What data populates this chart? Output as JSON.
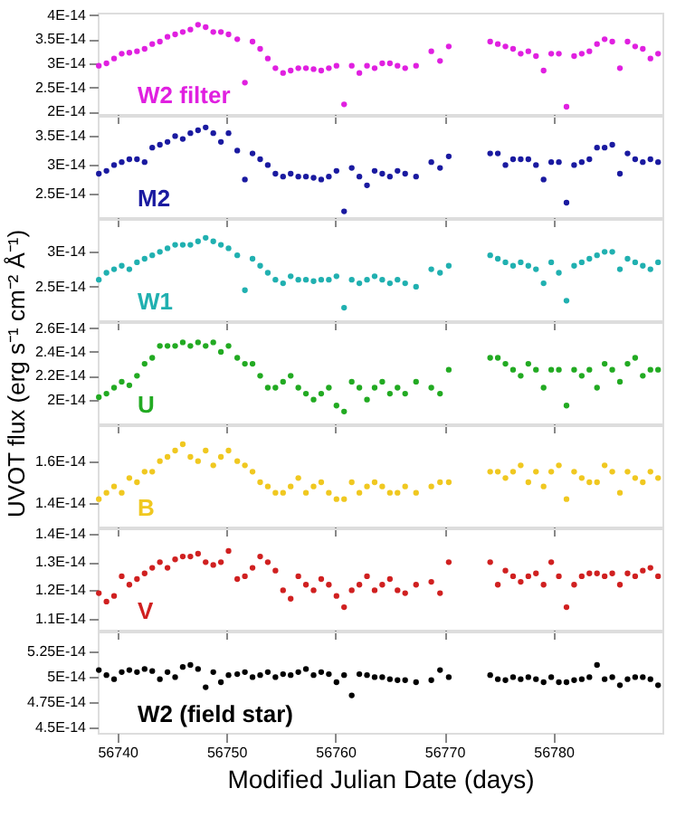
{
  "chart_data": [
    {
      "type": "scatter",
      "marker": "circle",
      "legend": false,
      "tick_labels": "y",
      "xlim": [
        56738.2,
        56790
      ],
      "xticks": [
        56740,
        56750,
        56760,
        56770,
        56780
      ],
      "ylim": [
        1.95e-14,
        4.05e-14
      ],
      "yticks": [
        {
          "value": 2e-14,
          "label": "2E-14"
        },
        {
          "value": 2.5e-14,
          "label": "2.5E-14"
        },
        {
          "value": 3e-14,
          "label": "3E-14"
        },
        {
          "value": 3.5e-14,
          "label": "3.5E-14"
        },
        {
          "value": 4e-14,
          "label": "4E-14"
        }
      ],
      "x": [
        56738.3,
        56739,
        56739.7,
        56740.4,
        56741.1,
        56741.8,
        56742.5,
        56743.2,
        56743.9,
        56744.6,
        56745.3,
        56746,
        56746.7,
        56747.4,
        56748.1,
        56748.8,
        56749.5,
        56750.2,
        56751,
        56751.7,
        56752.4,
        56753.1,
        56753.8,
        56754.5,
        56755.2,
        56755.9,
        56756.6,
        56757.3,
        56758,
        56758.7,
        56759.4,
        56760.1,
        56760.8,
        56761.5,
        56762.2,
        56762.9,
        56763.6,
        56764.3,
        56765,
        56765.7,
        56766.4,
        56767.4,
        56768.8,
        56769.6,
        56770.4,
        56774.2,
        56774.9,
        56775.6,
        56776.3,
        56777,
        56777.7,
        56778.4,
        56779.1,
        56779.8,
        56780.5,
        56781.2,
        56781.9,
        56782.6,
        56783.3,
        56784,
        56784.7,
        56785.4,
        56786.1,
        56786.8,
        56787.5,
        56788.2,
        56788.9,
        56789.6
      ],
      "series": [
        {
          "name": "W2 filter",
          "color": "#e020e0",
          "values": [
            2.95e-14,
            3e-14,
            3.1e-14,
            3.2e-14,
            3.22e-14,
            3.25e-14,
            3.3e-14,
            3.4e-14,
            3.45e-14,
            3.55e-14,
            3.6e-14,
            3.65e-14,
            3.7e-14,
            3.8e-14,
            3.75e-14,
            3.65e-14,
            3.65e-14,
            3.6e-14,
            3.5e-14,
            2.6e-14,
            3.45e-14,
            3.3e-14,
            3.1e-14,
            2.9e-14,
            2.8e-14,
            2.85e-14,
            2.9e-14,
            2.9e-14,
            2.88e-14,
            2.85e-14,
            2.9e-14,
            2.95e-14,
            2.15e-14,
            2.95e-14,
            2.8e-14,
            2.95e-14,
            2.9e-14,
            3e-14,
            3e-14,
            2.95e-14,
            2.9e-14,
            2.95e-14,
            3.25e-14,
            3.05e-14,
            3.35e-14,
            3.45e-14,
            3.4e-14,
            3.35e-14,
            3.3e-14,
            3.2e-14,
            3.25e-14,
            3.15e-14,
            2.85e-14,
            3.2e-14,
            3.2e-14,
            2.1e-14,
            3.15e-14,
            3.2e-14,
            3.25e-14,
            3.4e-14,
            3.5e-14,
            3.45e-14,
            2.9e-14,
            3.45e-14,
            3.35e-14,
            3.3e-14,
            3.1e-14,
            3.2e-14
          ]
        }
      ]
    },
    {
      "type": "scatter",
      "marker": "circle",
      "legend": false,
      "tick_labels": "y",
      "xlim": [
        56738.2,
        56790
      ],
      "xticks": [
        56740,
        56750,
        56760,
        56770,
        56780
      ],
      "ylim": [
        2.1e-14,
        3.85e-14
      ],
      "yticks": [
        {
          "value": 2.5e-14,
          "label": "2.5E-14"
        },
        {
          "value": 3e-14,
          "label": "3E-14"
        },
        {
          "value": 3.5e-14,
          "label": "3.5E-14"
        }
      ],
      "x": [
        56738.3,
        56739,
        56739.7,
        56740.4,
        56741.1,
        56741.8,
        56742.5,
        56743.2,
        56743.9,
        56744.6,
        56745.3,
        56746,
        56746.7,
        56747.4,
        56748.1,
        56748.8,
        56749.5,
        56750.2,
        56751,
        56751.7,
        56752.4,
        56753.1,
        56753.8,
        56754.5,
        56755.2,
        56755.9,
        56756.6,
        56757.3,
        56758,
        56758.7,
        56759.4,
        56760.1,
        56760.8,
        56761.5,
        56762.2,
        56762.9,
        56763.6,
        56764.3,
        56765,
        56765.7,
        56766.4,
        56767.4,
        56768.8,
        56769.6,
        56770.4,
        56774.2,
        56774.9,
        56775.6,
        56776.3,
        56777,
        56777.7,
        56778.4,
        56779.1,
        56779.8,
        56780.5,
        56781.2,
        56781.9,
        56782.6,
        56783.3,
        56784,
        56784.7,
        56785.4,
        56786.1,
        56786.8,
        56787.5,
        56788.2,
        56788.9,
        56789.6
      ],
      "series": [
        {
          "name": "M2",
          "color": "#1a1aa0",
          "values": [
            2.85e-14,
            2.9e-14,
            3e-14,
            3.05e-14,
            3.1e-14,
            3.1e-14,
            3.05e-14,
            3.3e-14,
            3.35e-14,
            3.4e-14,
            3.5e-14,
            3.45e-14,
            3.55e-14,
            3.6e-14,
            3.65e-14,
            3.55e-14,
            3.4e-14,
            3.55e-14,
            3.25e-14,
            2.75e-14,
            3.2e-14,
            3.1e-14,
            3e-14,
            2.85e-14,
            2.8e-14,
            2.85e-14,
            2.8e-14,
            2.8e-14,
            2.78e-14,
            2.75e-14,
            2.8e-14,
            2.9e-14,
            2.2e-14,
            2.95e-14,
            2.8e-14,
            2.65e-14,
            2.9e-14,
            2.85e-14,
            2.8e-14,
            2.9e-14,
            2.85e-14,
            2.8e-14,
            3.05e-14,
            2.95e-14,
            3.15e-14,
            3.2e-14,
            3.2e-14,
            3e-14,
            3.1e-14,
            3.1e-14,
            3.1e-14,
            3e-14,
            2.75e-14,
            3.05e-14,
            3.05e-14,
            2.35e-14,
            3e-14,
            3.05e-14,
            3.1e-14,
            3.3e-14,
            3.3e-14,
            3.35e-14,
            2.85e-14,
            3.2e-14,
            3.1e-14,
            3.05e-14,
            3.1e-14,
            3.05e-14
          ]
        }
      ]
    },
    {
      "type": "scatter",
      "marker": "circle",
      "legend": false,
      "tick_labels": "y",
      "xlim": [
        56738.2,
        56790
      ],
      "xticks": [
        56740,
        56750,
        56760,
        56770,
        56780
      ],
      "ylim": [
        2.02e-14,
        3.47e-14
      ],
      "yticks": [
        {
          "value": 2.5e-14,
          "label": "2.5E-14"
        },
        {
          "value": 3e-14,
          "label": "3E-14"
        }
      ],
      "x": [
        56738.3,
        56739,
        56739.7,
        56740.4,
        56741.1,
        56741.8,
        56742.5,
        56743.2,
        56743.9,
        56744.6,
        56745.3,
        56746,
        56746.7,
        56747.4,
        56748.1,
        56748.8,
        56749.5,
        56750.2,
        56751,
        56751.7,
        56752.4,
        56753.1,
        56753.8,
        56754.5,
        56755.2,
        56755.9,
        56756.6,
        56757.3,
        56758,
        56758.7,
        56759.4,
        56760.1,
        56760.8,
        56761.5,
        56762.2,
        56762.9,
        56763.6,
        56764.3,
        56765,
        56765.7,
        56766.4,
        56767.4,
        56768.8,
        56769.6,
        56770.4,
        56774.2,
        56774.9,
        56775.6,
        56776.3,
        56777,
        56777.7,
        56778.4,
        56779.1,
        56779.8,
        56780.5,
        56781.2,
        56781.9,
        56782.6,
        56783.3,
        56784,
        56784.7,
        56785.4,
        56786.1,
        56786.8,
        56787.5,
        56788.2,
        56788.9,
        56789.6
      ],
      "series": [
        {
          "name": "W1",
          "color": "#20b0b0",
          "values": [
            2.6e-14,
            2.7e-14,
            2.75e-14,
            2.8e-14,
            2.75e-14,
            2.85e-14,
            2.9e-14,
            2.95e-14,
            3e-14,
            3.05e-14,
            3.1e-14,
            3.1e-14,
            3.1e-14,
            3.15e-14,
            3.2e-14,
            3.15e-14,
            3.1e-14,
            3.05e-14,
            2.95e-14,
            2.45e-14,
            2.9e-14,
            2.8e-14,
            2.7e-14,
            2.6e-14,
            2.55e-14,
            2.65e-14,
            2.6e-14,
            2.6e-14,
            2.58e-14,
            2.6e-14,
            2.6e-14,
            2.65e-14,
            2.2e-14,
            2.6e-14,
            2.55e-14,
            2.6e-14,
            2.65e-14,
            2.6e-14,
            2.55e-14,
            2.6e-14,
            2.55e-14,
            2.5e-14,
            2.75e-14,
            2.7e-14,
            2.8e-14,
            2.95e-14,
            2.9e-14,
            2.85e-14,
            2.8e-14,
            2.85e-14,
            2.8e-14,
            2.75e-14,
            2.55e-14,
            2.85e-14,
            2.7e-14,
            2.3e-14,
            2.8e-14,
            2.85e-14,
            2.9e-14,
            2.95e-14,
            3e-14,
            3e-14,
            2.75e-14,
            2.9e-14,
            2.85e-14,
            2.8e-14,
            2.75e-14,
            2.85e-14
          ]
        }
      ]
    },
    {
      "type": "scatter",
      "marker": "circle",
      "legend": false,
      "tick_labels": "y",
      "ylabel": "UVOT flux (erg s⁻¹ cm⁻² Å⁻¹)",
      "xlim": [
        56738.2,
        56790
      ],
      "xticks": [
        56740,
        56750,
        56760,
        56770,
        56780
      ],
      "ylim": [
        1.8e-14,
        2.65e-14
      ],
      "yticks": [
        {
          "value": 2e-14,
          "label": "2E-14"
        },
        {
          "value": 2.2e-14,
          "label": "2.2E-14"
        },
        {
          "value": 2.4e-14,
          "label": "2.4E-14"
        },
        {
          "value": 2.6e-14,
          "label": "2.6E-14"
        }
      ],
      "x": [
        56738.3,
        56739,
        56739.7,
        56740.4,
        56741.1,
        56741.8,
        56742.5,
        56743.2,
        56743.9,
        56744.6,
        56745.3,
        56746,
        56746.7,
        56747.4,
        56748.1,
        56748.8,
        56749.5,
        56750.2,
        56751,
        56751.7,
        56752.4,
        56753.1,
        56753.8,
        56754.5,
        56755.2,
        56755.9,
        56756.6,
        56757.3,
        56758,
        56758.7,
        56759.4,
        56760.1,
        56760.8,
        56761.5,
        56762.2,
        56762.9,
        56763.6,
        56764.3,
        56765,
        56765.7,
        56766.4,
        56767.4,
        56768.8,
        56769.6,
        56770.4,
        56774.2,
        56774.9,
        56775.6,
        56776.3,
        56777,
        56777.7,
        56778.4,
        56779.1,
        56779.8,
        56780.5,
        56781.2,
        56781.9,
        56782.6,
        56783.3,
        56784,
        56784.7,
        56785.4,
        56786.1,
        56786.8,
        56787.5,
        56788.2,
        56788.9,
        56789.6
      ],
      "series": [
        {
          "name": "U",
          "color": "#22aa22",
          "values": [
            2.02e-14,
            2.05e-14,
            2.1e-14,
            2.15e-14,
            2.12e-14,
            2.2e-14,
            2.3e-14,
            2.35e-14,
            2.45e-14,
            2.45e-14,
            2.45e-14,
            2.48e-14,
            2.45e-14,
            2.48e-14,
            2.45e-14,
            2.48e-14,
            2.4e-14,
            2.45e-14,
            2.35e-14,
            2.3e-14,
            2.3e-14,
            2.2e-14,
            2.1e-14,
            2.1e-14,
            2.15e-14,
            2.2e-14,
            2.1e-14,
            2.05e-14,
            2e-14,
            2.05e-14,
            2.1e-14,
            1.95e-14,
            1.9e-14,
            2.15e-14,
            2.1e-14,
            2e-14,
            2.1e-14,
            2.15e-14,
            2.05e-14,
            2.1e-14,
            2.05e-14,
            2.15e-14,
            2.1e-14,
            2.05e-14,
            2.25e-14,
            2.35e-14,
            2.35e-14,
            2.3e-14,
            2.25e-14,
            2.2e-14,
            2.3e-14,
            2.25e-14,
            2.1e-14,
            2.25e-14,
            2.25e-14,
            1.95e-14,
            2.25e-14,
            2.2e-14,
            2.25e-14,
            2.1e-14,
            2.3e-14,
            2.25e-14,
            2.15e-14,
            2.3e-14,
            2.35e-14,
            2.2e-14,
            2.25e-14,
            2.25e-14
          ]
        }
      ]
    },
    {
      "type": "scatter",
      "marker": "circle",
      "legend": false,
      "tick_labels": "y",
      "xlim": [
        56738.2,
        56790
      ],
      "xticks": [
        56740,
        56750,
        56760,
        56770,
        56780
      ],
      "ylim": [
        1.29e-14,
        1.77e-14
      ],
      "yticks": [
        {
          "value": 1.4e-14,
          "label": "1.4E-14"
        },
        {
          "value": 1.6e-14,
          "label": "1.6E-14"
        }
      ],
      "x": [
        56738.3,
        56739,
        56739.7,
        56740.4,
        56741.1,
        56741.8,
        56742.5,
        56743.2,
        56743.9,
        56744.6,
        56745.3,
        56746,
        56746.7,
        56747.4,
        56748.1,
        56748.8,
        56749.5,
        56750.2,
        56751,
        56751.7,
        56752.4,
        56753.1,
        56753.8,
        56754.5,
        56755.2,
        56755.9,
        56756.6,
        56757.3,
        56758,
        56758.7,
        56759.4,
        56760.1,
        56760.8,
        56761.5,
        56762.2,
        56762.9,
        56763.6,
        56764.3,
        56765,
        56765.7,
        56766.4,
        56767.4,
        56768.8,
        56769.6,
        56770.4,
        56774.2,
        56774.9,
        56775.6,
        56776.3,
        56777,
        56777.7,
        56778.4,
        56779.1,
        56779.8,
        56780.5,
        56781.2,
        56781.9,
        56782.6,
        56783.3,
        56784,
        56784.7,
        56785.4,
        56786.1,
        56786.8,
        56787.5,
        56788.2,
        56788.9,
        56789.6
      ],
      "series": [
        {
          "name": "B",
          "color": "#f0c820",
          "values": [
            1.42e-14,
            1.45e-14,
            1.48e-14,
            1.45e-14,
            1.52e-14,
            1.5e-14,
            1.55e-14,
            1.55e-14,
            1.6e-14,
            1.62e-14,
            1.65e-14,
            1.68e-14,
            1.62e-14,
            1.6e-14,
            1.65e-14,
            1.58e-14,
            1.62e-14,
            1.65e-14,
            1.6e-14,
            1.58e-14,
            1.55e-14,
            1.5e-14,
            1.48e-14,
            1.45e-14,
            1.45e-14,
            1.48e-14,
            1.52e-14,
            1.45e-14,
            1.48e-14,
            1.5e-14,
            1.45e-14,
            1.42e-14,
            1.42e-14,
            1.5e-14,
            1.45e-14,
            1.48e-14,
            1.5e-14,
            1.48e-14,
            1.45e-14,
            1.45e-14,
            1.48e-14,
            1.45e-14,
            1.48e-14,
            1.5e-14,
            1.5e-14,
            1.55e-14,
            1.55e-14,
            1.52e-14,
            1.55e-14,
            1.58e-14,
            1.5e-14,
            1.55e-14,
            1.48e-14,
            1.55e-14,
            1.58e-14,
            1.42e-14,
            1.55e-14,
            1.52e-14,
            1.5e-14,
            1.5e-14,
            1.58e-14,
            1.55e-14,
            1.45e-14,
            1.55e-14,
            1.52e-14,
            1.5e-14,
            1.55e-14,
            1.52e-14
          ]
        }
      ]
    },
    {
      "type": "scatter",
      "marker": "circle",
      "legend": false,
      "tick_labels": "y",
      "xlim": [
        56738.2,
        56790
      ],
      "xticks": [
        56740,
        56750,
        56760,
        56770,
        56780
      ],
      "ylim": [
        1.06e-14,
        1.42e-14
      ],
      "yticks": [
        {
          "value": 1.1e-14,
          "label": "1.1E-14"
        },
        {
          "value": 1.2e-14,
          "label": "1.2E-14"
        },
        {
          "value": 1.3e-14,
          "label": "1.3E-14"
        },
        {
          "value": 1.4e-14,
          "label": "1.4E-14"
        }
      ],
      "x": [
        56738.3,
        56739,
        56739.7,
        56740.4,
        56741.1,
        56741.8,
        56742.5,
        56743.2,
        56743.9,
        56744.6,
        56745.3,
        56746,
        56746.7,
        56747.4,
        56748.1,
        56748.8,
        56749.5,
        56750.2,
        56751,
        56751.7,
        56752.4,
        56753.1,
        56753.8,
        56754.5,
        56755.2,
        56755.9,
        56756.6,
        56757.3,
        56758,
        56758.7,
        56759.4,
        56760.1,
        56760.8,
        56761.5,
        56762.2,
        56762.9,
        56763.6,
        56764.3,
        56765,
        56765.7,
        56766.4,
        56767.4,
        56768.8,
        56769.6,
        56770.4,
        56774.2,
        56774.9,
        56775.6,
        56776.3,
        56777,
        56777.7,
        56778.4,
        56779.1,
        56779.8,
        56780.5,
        56781.2,
        56781.9,
        56782.6,
        56783.3,
        56784,
        56784.7,
        56785.4,
        56786.1,
        56786.8,
        56787.5,
        56788.2,
        56788.9,
        56789.6
      ],
      "series": [
        {
          "name": "V",
          "color": "#d02020",
          "values": [
            1.19e-14,
            1.16e-14,
            1.18e-14,
            1.25e-14,
            1.22e-14,
            1.24e-14,
            1.26e-14,
            1.28e-14,
            1.3e-14,
            1.28e-14,
            1.31e-14,
            1.32e-14,
            1.32e-14,
            1.33e-14,
            1.3e-14,
            1.29e-14,
            1.3e-14,
            1.34e-14,
            1.24e-14,
            1.25e-14,
            1.28e-14,
            1.32e-14,
            1.3e-14,
            1.27e-14,
            1.2e-14,
            1.17e-14,
            1.25e-14,
            1.22e-14,
            1.2e-14,
            1.24e-14,
            1.22e-14,
            1.18e-14,
            1.14e-14,
            1.2e-14,
            1.22e-14,
            1.25e-14,
            1.2e-14,
            1.22e-14,
            1.24e-14,
            1.2e-14,
            1.19e-14,
            1.22e-14,
            1.23e-14,
            1.19e-14,
            1.3e-14,
            1.3e-14,
            1.22e-14,
            1.27e-14,
            1.25e-14,
            1.23e-14,
            1.25e-14,
            1.26e-14,
            1.22e-14,
            1.3e-14,
            1.25e-14,
            1.14e-14,
            1.22e-14,
            1.25e-14,
            1.26e-14,
            1.26e-14,
            1.25e-14,
            1.26e-14,
            1.22e-14,
            1.26e-14,
            1.25e-14,
            1.27e-14,
            1.28e-14,
            1.25e-14
          ]
        }
      ]
    },
    {
      "type": "scatter",
      "marker": "circle",
      "legend": false,
      "xlabel": "Modified Julian Date (days)",
      "xlim": [
        56738.2,
        56790
      ],
      "xticks": [
        56740,
        56750,
        56760,
        56770,
        56780
      ],
      "ylim": [
        4.45e-14,
        5.45e-14
      ],
      "yticks": [
        {
          "value": 4.5e-14,
          "label": "4.5E-14"
        },
        {
          "value": 4.75e-14,
          "label": "4.75E-14"
        },
        {
          "value": 5e-14,
          "label": "5E-14"
        },
        {
          "value": 5.25e-14,
          "label": "5.25E-14"
        }
      ],
      "x": [
        56738.3,
        56739,
        56739.7,
        56740.4,
        56741.1,
        56741.8,
        56742.5,
        56743.2,
        56743.9,
        56744.6,
        56745.3,
        56746,
        56746.7,
        56747.4,
        56748.1,
        56748.8,
        56749.5,
        56750.2,
        56751,
        56751.7,
        56752.4,
        56753.1,
        56753.8,
        56754.5,
        56755.2,
        56755.9,
        56756.6,
        56757.3,
        56758,
        56758.7,
        56759.4,
        56760.1,
        56760.8,
        56761.5,
        56762.2,
        56762.9,
        56763.6,
        56764.3,
        56765,
        56765.7,
        56766.4,
        56767.4,
        56768.8,
        56769.6,
        56770.4,
        56774.2,
        56774.9,
        56775.6,
        56776.3,
        56777,
        56777.7,
        56778.4,
        56779.1,
        56779.8,
        56780.5,
        56781.2,
        56781.9,
        56782.6,
        56783.3,
        56784,
        56784.7,
        56785.4,
        56786.1,
        56786.8,
        56787.5,
        56788.2,
        56788.9,
        56789.6
      ],
      "series": [
        {
          "name": "W2 (field star)",
          "color": "#000000",
          "values": [
            5.07e-14,
            5.02e-14,
            4.98e-14,
            5.05e-14,
            5.07e-14,
            5.05e-14,
            5.08e-14,
            5.06e-14,
            4.98e-14,
            5.05e-14,
            5e-14,
            5.1e-14,
            5.12e-14,
            5.08e-14,
            4.9e-14,
            5.05e-14,
            4.95e-14,
            5.02e-14,
            5.03e-14,
            5.05e-14,
            5e-14,
            5.02e-14,
            5.05e-14,
            5e-14,
            5.03e-14,
            5.02e-14,
            5.05e-14,
            5.08e-14,
            5.02e-14,
            5.05e-14,
            5.03e-14,
            4.95e-14,
            5.02e-14,
            4.82e-14,
            5.03e-14,
            5.02e-14,
            5e-14,
            5e-14,
            4.98e-14,
            4.97e-14,
            4.97e-14,
            4.95e-14,
            4.97e-14,
            5.07e-14,
            5e-14,
            5.02e-14,
            4.98e-14,
            4.97e-14,
            5e-14,
            4.98e-14,
            5e-14,
            4.98e-14,
            4.95e-14,
            5e-14,
            4.95e-14,
            4.95e-14,
            4.97e-14,
            4.98e-14,
            5e-14,
            5.12e-14,
            4.98e-14,
            5e-14,
            4.92e-14,
            4.98e-14,
            5e-14,
            5e-14,
            4.98e-14,
            4.92e-14
          ]
        }
      ]
    }
  ]
}
